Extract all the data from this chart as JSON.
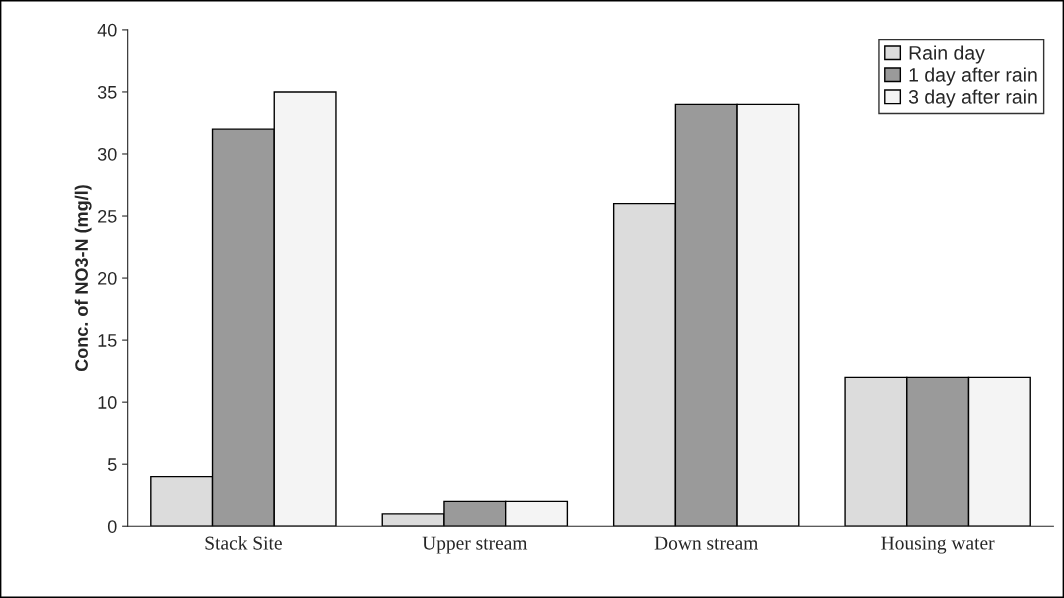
{
  "chart_data": {
    "type": "bar",
    "ylabel": "Conc. of NO3-N (mg/l)",
    "categories": [
      "Stack Site",
      "Upper stream",
      "Down stream",
      "Housing water"
    ],
    "series": [
      {
        "name": "Rain day",
        "color": "#dcdcdc",
        "values": [
          4,
          1,
          26,
          12
        ]
      },
      {
        "name": "1 day after rain",
        "color": "#9a9a9a",
        "values": [
          32,
          2,
          34,
          12
        ]
      },
      {
        "name": "3 day after rain",
        "color": "#f4f4f4",
        "values": [
          35,
          2,
          34,
          12
        ]
      }
    ],
    "ylim": [
      0,
      40
    ],
    "yticks": [
      0,
      5,
      10,
      15,
      20,
      25,
      30,
      35,
      40
    ],
    "grid": false,
    "legend": "top right"
  }
}
